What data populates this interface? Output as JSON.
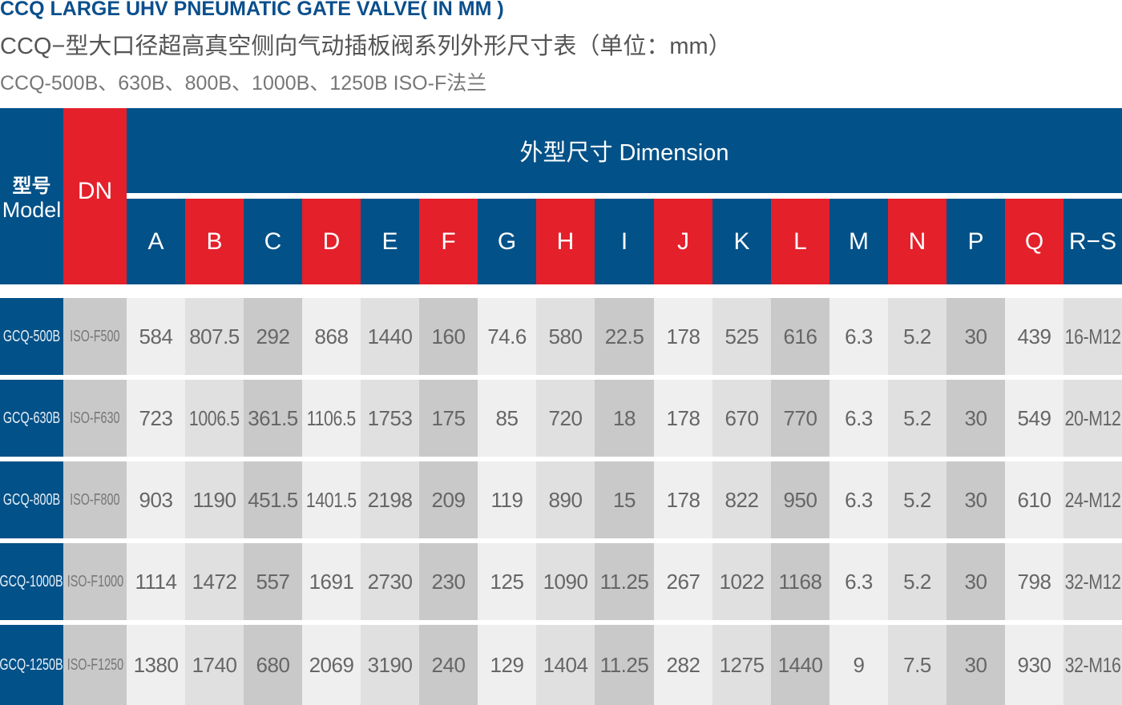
{
  "title_en": "CCQ LARGE UHV PNEUMATIC GATE VALVE( IN MM )",
  "title_cn": "CCQ−型大口径超高真空侧向气动插板阀系列外形尺寸表（单位：mm）",
  "subtitle": "CCQ-500B、630B、800B、1000B、1250B ISO-F法兰",
  "colors": {
    "blue": "#025188",
    "red": "#e4202b"
  },
  "table": {
    "model_header_cn": "型号",
    "model_header_en": "Model",
    "dn_header": "DN",
    "dimension_header": "外型尺寸 Dimension",
    "columns": [
      "A",
      "B",
      "C",
      "D",
      "E",
      "F",
      "G",
      "H",
      "I",
      "J",
      "K",
      "L",
      "M",
      "N",
      "P",
      "Q",
      "R−S"
    ],
    "rows": [
      {
        "model": "GCQ-500B",
        "dn": "ISO-F500",
        "values": [
          "584",
          "807.5",
          "292",
          "868",
          "1440",
          "160",
          "74.6",
          "580",
          "22.5",
          "178",
          "525",
          "616",
          "6.3",
          "5.2",
          "30",
          "439",
          "16-M12"
        ]
      },
      {
        "model": "GCQ-630B",
        "dn": "ISO-F630",
        "values": [
          "723",
          "1006.5",
          "361.5",
          "1106.5",
          "1753",
          "175",
          "85",
          "720",
          "18",
          "178",
          "670",
          "770",
          "6.3",
          "5.2",
          "30",
          "549",
          "20-M12"
        ]
      },
      {
        "model": "GCQ-800B",
        "dn": "ISO-F800",
        "values": [
          "903",
          "1190",
          "451.5",
          "1401.5",
          "2198",
          "209",
          "119",
          "890",
          "15",
          "178",
          "822",
          "950",
          "6.3",
          "5.2",
          "30",
          "610",
          "24-M12"
        ]
      },
      {
        "model": "GCQ-1000B",
        "dn": "ISO-F1000",
        "values": [
          "1114",
          "1472",
          "557",
          "1691",
          "2730",
          "230",
          "125",
          "1090",
          "11.25",
          "267",
          "1022",
          "1168",
          "6.3",
          "5.2",
          "30",
          "798",
          "32-M12"
        ]
      },
      {
        "model": "GCQ-1250B",
        "dn": "ISO-F1250",
        "values": [
          "1380",
          "1740",
          "680",
          "2069",
          "3190",
          "240",
          "129",
          "1404",
          "11.25",
          "282",
          "1275",
          "1440",
          "9",
          "7.5",
          "30",
          "930",
          "32-M16"
        ]
      }
    ]
  }
}
